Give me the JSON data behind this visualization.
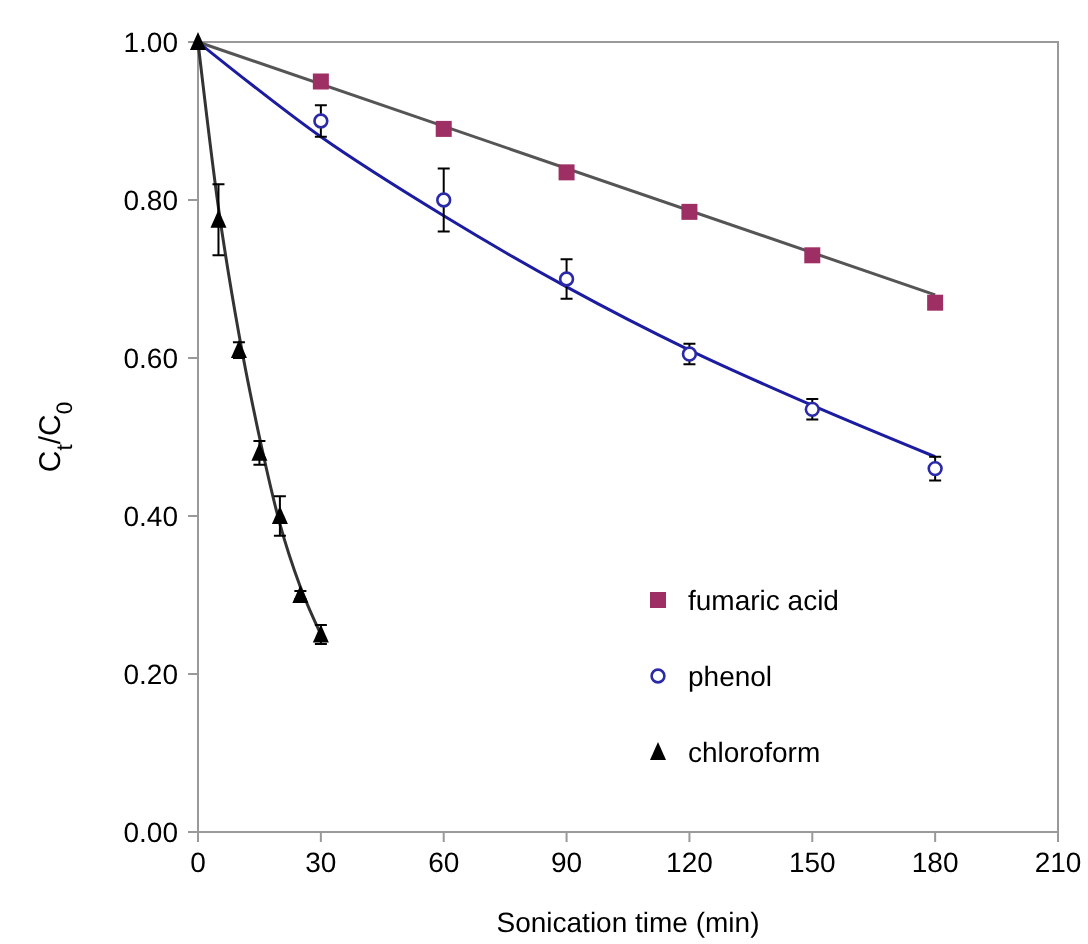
{
  "chart_data": {
    "type": "scatter",
    "xlabel": "Sonication time (min)",
    "ylabel": "C$_{t}$/C$_{0}$",
    "xlim": [
      0,
      210
    ],
    "xticks": [
      0,
      30,
      60,
      90,
      120,
      150,
      180,
      210
    ],
    "ylim": [
      0,
      1
    ],
    "yticks": [
      {
        "value": 0,
        "label": "0.00"
      },
      {
        "value": 0.2,
        "label": "0.20"
      },
      {
        "value": 0.4,
        "label": "0.40"
      },
      {
        "value": 0.6,
        "label": "0.60"
      },
      {
        "value": 0.8,
        "label": "0.80"
      },
      {
        "value": 1,
        "label": "1.00"
      }
    ],
    "grid": false,
    "legend": "right",
    "series": [
      {
        "type": "line",
        "color": "#555555",
        "x": [
          0,
          180
        ],
        "values": [
          1.0,
          0.68
        ],
        "marker": "none"
      },
      {
        "type": "line",
        "color": "#1c1ca0",
        "x": [
          0,
          30,
          60,
          90,
          120,
          150,
          180
        ],
        "values": [
          1.0,
          0.88,
          0.78,
          0.69,
          0.61,
          0.54,
          0.475
        ],
        "marker": "none"
      },
      {
        "type": "line",
        "color": "#333333",
        "x": [
          0,
          5,
          10,
          15,
          20,
          25,
          30
        ],
        "values": [
          1.0,
          0.79,
          0.63,
          0.5,
          0.39,
          0.31,
          0.25
        ],
        "marker": "none"
      },
      {
        "name": "fumaric acid",
        "color": "#9e2f64",
        "marker": "square",
        "x": [
          30,
          60,
          90,
          120,
          150,
          180
        ],
        "values": [
          0.95,
          0.89,
          0.835,
          0.785,
          0.73,
          0.67
        ]
      },
      {
        "name": "phenol",
        "color": "#2a2aa8",
        "marker": "circle",
        "x": [
          30,
          60,
          90,
          120,
          150,
          180
        ],
        "values": [
          0.9,
          0.8,
          0.7,
          0.605,
          0.535,
          0.46
        ],
        "errors": [
          0.02,
          0.04,
          0.025,
          0.013,
          0.013,
          0.015
        ]
      },
      {
        "name": "chloroform",
        "color": "#000000",
        "marker": "triangle",
        "x": [
          0,
          5,
          10,
          15,
          20,
          25,
          30
        ],
        "values": [
          1.0,
          0.775,
          0.61,
          0.48,
          0.4,
          0.3,
          0.25
        ],
        "errors": [
          null,
          0.045,
          0.01,
          0.015,
          0.025,
          0.005,
          0.012
        ]
      }
    ]
  }
}
